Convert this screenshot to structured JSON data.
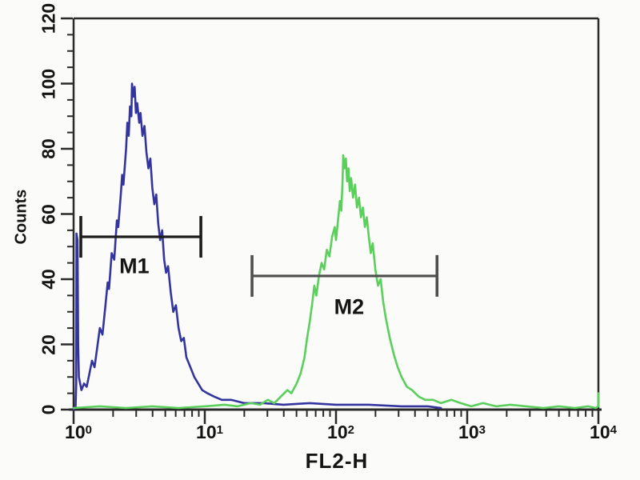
{
  "page": {
    "background": "#fbfbf9"
  },
  "chart_data": {
    "type": "line-histogram-overlay",
    "xlabel": "FL2-H",
    "ylabel": "Counts",
    "x_scale": "log",
    "x_range_exp": [
      0,
      4
    ],
    "x_tick_base": "10",
    "x_major_exponents": [
      0,
      1,
      2,
      3,
      4
    ],
    "y_range": [
      0,
      120
    ],
    "y_major_ticks": [
      0,
      20,
      40,
      60,
      80,
      100,
      120
    ],
    "y_minor_step": 5,
    "grid": "off",
    "legend": "none",
    "axis_color": "#2a2a2a",
    "text_color": "#141414",
    "series": [
      {
        "name": "blue-peak",
        "color": "#34349e",
        "peak_log_x": 0.445,
        "peak_counts": 100,
        "points": [
          [
            0.0,
            0
          ],
          [
            0.015,
            1
          ],
          [
            0.02,
            8
          ],
          [
            0.022,
            54
          ],
          [
            0.03,
            52
          ],
          [
            0.035,
            20
          ],
          [
            0.04,
            10
          ],
          [
            0.06,
            6
          ],
          [
            0.08,
            8
          ],
          [
            0.1,
            7
          ],
          [
            0.12,
            11
          ],
          [
            0.14,
            15
          ],
          [
            0.16,
            13
          ],
          [
            0.18,
            19
          ],
          [
            0.2,
            25
          ],
          [
            0.22,
            23
          ],
          [
            0.24,
            31
          ],
          [
            0.26,
            39
          ],
          [
            0.27,
            37
          ],
          [
            0.29,
            48
          ],
          [
            0.31,
            46
          ],
          [
            0.33,
            58
          ],
          [
            0.34,
            56
          ],
          [
            0.36,
            66
          ],
          [
            0.37,
            72
          ],
          [
            0.38,
            69
          ],
          [
            0.4,
            80
          ],
          [
            0.41,
            88
          ],
          [
            0.42,
            84
          ],
          [
            0.43,
            93
          ],
          [
            0.44,
            90
          ],
          [
            0.445,
            100
          ],
          [
            0.455,
            96
          ],
          [
            0.465,
            99
          ],
          [
            0.475,
            91
          ],
          [
            0.485,
            94
          ],
          [
            0.5,
            88
          ],
          [
            0.51,
            91
          ],
          [
            0.525,
            84
          ],
          [
            0.54,
            87
          ],
          [
            0.555,
            79
          ],
          [
            0.57,
            74
          ],
          [
            0.585,
            77
          ],
          [
            0.6,
            68
          ],
          [
            0.615,
            63
          ],
          [
            0.63,
            66
          ],
          [
            0.645,
            57
          ],
          [
            0.66,
            52
          ],
          [
            0.675,
            55
          ],
          [
            0.69,
            46
          ],
          [
            0.705,
            42
          ],
          [
            0.72,
            44
          ],
          [
            0.74,
            36
          ],
          [
            0.76,
            30
          ],
          [
            0.78,
            32
          ],
          [
            0.8,
            25
          ],
          [
            0.82,
            21
          ],
          [
            0.84,
            22
          ],
          [
            0.86,
            16
          ],
          [
            0.89,
            13
          ],
          [
            0.92,
            10
          ],
          [
            0.95,
            8
          ],
          [
            0.98,
            6
          ],
          [
            1.02,
            5
          ],
          [
            1.07,
            4
          ],
          [
            1.13,
            3
          ],
          [
            1.2,
            3
          ],
          [
            1.3,
            2
          ],
          [
            1.45,
            2
          ],
          [
            1.6,
            1.5
          ],
          [
            1.8,
            2
          ],
          [
            2.0,
            1.5
          ],
          [
            2.25,
            1.5
          ],
          [
            2.5,
            1
          ],
          [
            2.7,
            1
          ],
          [
            2.8,
            0.5
          ]
        ]
      },
      {
        "name": "green-peak",
        "color": "#5bcf5b",
        "peak_log_x": 2.055,
        "peak_counts": 78,
        "points": [
          [
            0.0,
            0.5
          ],
          [
            0.2,
            1
          ],
          [
            0.4,
            0.5
          ],
          [
            0.6,
            1
          ],
          [
            0.8,
            0.5
          ],
          [
            1.0,
            1
          ],
          [
            1.15,
            1.5
          ],
          [
            1.25,
            1
          ],
          [
            1.35,
            2
          ],
          [
            1.42,
            1.5
          ],
          [
            1.48,
            3
          ],
          [
            1.53,
            2
          ],
          [
            1.58,
            4
          ],
          [
            1.63,
            6
          ],
          [
            1.66,
            5
          ],
          [
            1.7,
            8
          ],
          [
            1.73,
            11
          ],
          [
            1.76,
            16
          ],
          [
            1.78,
            22
          ],
          [
            1.8,
            27
          ],
          [
            1.82,
            33
          ],
          [
            1.835,
            38
          ],
          [
            1.85,
            35
          ],
          [
            1.87,
            41
          ],
          [
            1.89,
            45
          ],
          [
            1.91,
            43
          ],
          [
            1.93,
            49
          ],
          [
            1.95,
            47
          ],
          [
            1.97,
            53
          ],
          [
            1.99,
            56
          ],
          [
            2.0,
            52
          ],
          [
            2.02,
            60
          ],
          [
            2.03,
            64
          ],
          [
            2.04,
            61
          ],
          [
            2.05,
            70
          ],
          [
            2.055,
            78
          ],
          [
            2.065,
            74
          ],
          [
            2.075,
            77
          ],
          [
            2.085,
            70
          ],
          [
            2.095,
            74
          ],
          [
            2.105,
            67
          ],
          [
            2.115,
            71
          ],
          [
            2.13,
            65
          ],
          [
            2.145,
            69
          ],
          [
            2.16,
            62
          ],
          [
            2.175,
            65
          ],
          [
            2.19,
            59
          ],
          [
            2.205,
            62
          ],
          [
            2.22,
            56
          ],
          [
            2.235,
            59
          ],
          [
            2.25,
            53
          ],
          [
            2.265,
            48
          ],
          [
            2.28,
            51
          ],
          [
            2.3,
            43
          ],
          [
            2.32,
            38
          ],
          [
            2.34,
            40
          ],
          [
            2.36,
            33
          ],
          [
            2.38,
            28
          ],
          [
            2.41,
            22
          ],
          [
            2.44,
            17
          ],
          [
            2.47,
            13
          ],
          [
            2.5,
            10
          ],
          [
            2.54,
            7
          ],
          [
            2.58,
            6
          ],
          [
            2.63,
            4
          ],
          [
            2.68,
            3
          ],
          [
            2.74,
            3
          ],
          [
            2.8,
            2
          ],
          [
            2.88,
            3
          ],
          [
            2.95,
            2
          ],
          [
            3.03,
            1
          ],
          [
            3.12,
            2
          ],
          [
            3.22,
            1
          ],
          [
            3.33,
            1.5
          ],
          [
            3.45,
            1
          ],
          [
            3.58,
            0.5
          ],
          [
            3.7,
            1
          ],
          [
            3.82,
            0.5
          ],
          [
            3.92,
            1
          ],
          [
            3.98,
            0.5
          ],
          [
            4.0,
            1
          ],
          [
            4.0,
            5
          ]
        ]
      }
    ],
    "gates": [
      {
        "label": "M1",
        "color": "#1c1c1c",
        "y_counts": 53,
        "x_log_start": 0.055,
        "x_log_end": 0.97,
        "x_value_start": 1.1,
        "x_value_end": 9.3,
        "label_pos": {
          "log_x": 0.463,
          "counts": 44
        }
      },
      {
        "label": "M2",
        "color": "#4f4f4f",
        "y_counts": 41,
        "x_log_start": 1.36,
        "x_log_end": 2.77,
        "x_value_start": 23,
        "x_value_end": 590,
        "label_pos": {
          "log_x": 2.1,
          "counts": 31.5
        }
      }
    ]
  }
}
